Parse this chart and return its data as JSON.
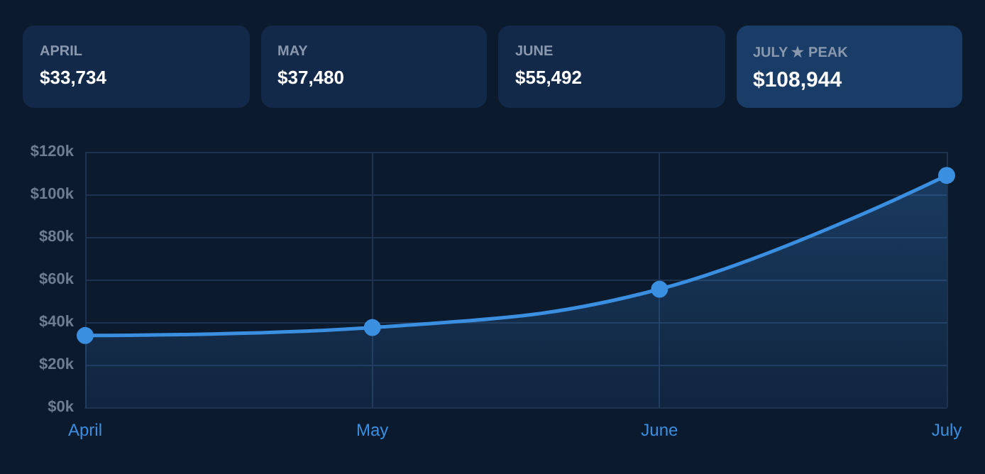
{
  "chart_data": [
    {
      "type": "other",
      "annotations": [
        "APRIL",
        "$33,734",
        "MAY",
        "$37,480",
        "JUNE",
        "$55,492",
        "JULY ★ PEAK",
        "$108,944"
      ]
    },
    {
      "type": "area",
      "categories": [
        "April",
        "May",
        "June",
        "July"
      ],
      "values": [
        33734,
        37480,
        55492,
        108944
      ],
      "color": "#3b8fe0",
      "ylim": [
        0,
        120000
      ],
      "yticks": [
        {
          "value": 0,
          "label": "$0k"
        },
        {
          "value": 20000,
          "label": "$20k"
        },
        {
          "value": 40000,
          "label": "$40k"
        },
        {
          "value": 60000,
          "label": "$60k"
        },
        {
          "value": 80000,
          "label": "$80k"
        },
        {
          "value": 100000,
          "label": "$100k"
        },
        {
          "value": 120000,
          "label": "$120k"
        }
      ],
      "grid": true,
      "marker": "circle",
      "line_style": "solid"
    }
  ]
}
